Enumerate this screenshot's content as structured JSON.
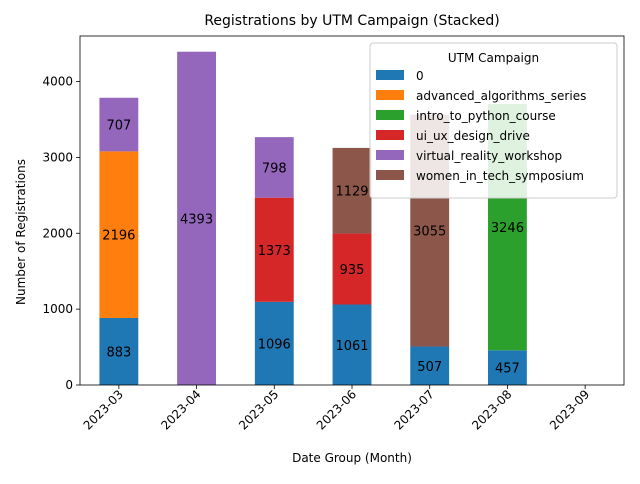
{
  "chart_data": {
    "type": "bar",
    "stacked": true,
    "title": "Registrations by UTM Campaign (Stacked)",
    "xlabel": "Date Group (Month)",
    "ylabel": "Number of Registrations",
    "categories": [
      "2023-03",
      "2023-04",
      "2023-05",
      "2023-06",
      "2023-07",
      "2023-08",
      "2023-09"
    ],
    "ylim": [
      0,
      4600
    ],
    "yticks": [
      0,
      1000,
      2000,
      3000,
      4000
    ],
    "grid": false,
    "legend": {
      "title": "UTM Campaign",
      "placement": "upper-right"
    },
    "series": [
      {
        "name": "0",
        "color": "#1f77b4",
        "values": [
          883,
          0,
          1096,
          1061,
          507,
          457,
          0
        ]
      },
      {
        "name": "advanced_algorithms_series",
        "color": "#ff7f0e",
        "values": [
          2196,
          0,
          0,
          0,
          0,
          0,
          0
        ]
      },
      {
        "name": "intro_to_python_course",
        "color": "#2ca02c",
        "values": [
          0,
          0,
          0,
          0,
          0,
          3246,
          0
        ]
      },
      {
        "name": "ui_ux_design_drive",
        "color": "#d62728",
        "values": [
          0,
          0,
          1373,
          935,
          0,
          0,
          0
        ]
      },
      {
        "name": "virtual_reality_workshop",
        "color": "#9467bd",
        "values": [
          707,
          4393,
          798,
          0,
          0,
          0,
          0
        ]
      },
      {
        "name": "women_in_tech_symposium",
        "color": "#8c564b",
        "values": [
          0,
          0,
          0,
          1129,
          3055,
          0,
          0
        ]
      }
    ]
  }
}
